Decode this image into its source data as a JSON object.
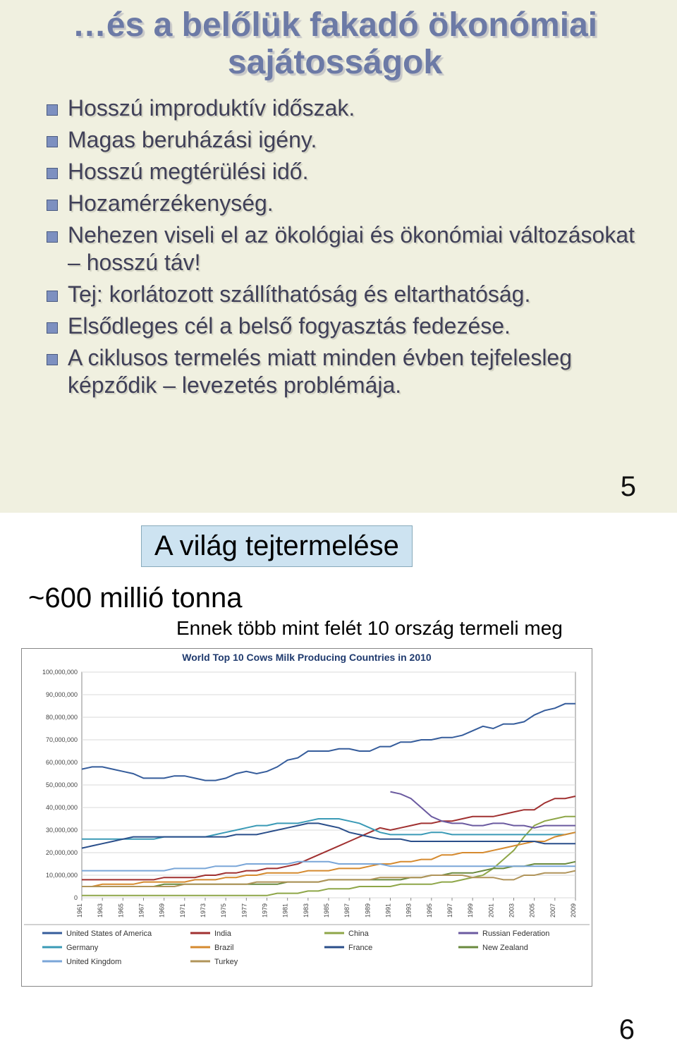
{
  "slide5": {
    "title_line1": "…és a belőlük fakadó ökonómiai",
    "title_line2": "sajátosságok",
    "bullets": [
      "Hosszú improduktív időszak.",
      "Magas beruházási igény.",
      "Hosszú megtérülési idő.",
      "Hozamérzékenység.",
      "Nehezen viseli el az ökológiai és ökonómiai változásokat – hosszú táv!",
      "Tej: korlátozott szállíthatóság és eltarthatóság.",
      "Elsődleges cél a belső fogyasztás fedezése.",
      "A ciklusos termelés miatt minden évben tejfelesleg képződik – levezetés problémája."
    ],
    "page": "5"
  },
  "slide6": {
    "titlebox": "A világ tejtermelése",
    "subline": "~600 millió tonna",
    "caption": "Ennek több mint felét 10 ország termeli meg",
    "page": "6",
    "chart": {
      "type": "line",
      "title": "World Top 10 Cows Milk Producing Countries in 2010",
      "title_fontsize": 14,
      "title_color": "#1f3a6e",
      "background_color": "#ffffff",
      "plot_bg": "#ffffff",
      "grid_color": "#d9d9d9",
      "border_color": "#888888",
      "axis_fontsize": 9,
      "axis_color": "#444444",
      "xlim": [
        1961,
        2009
      ],
      "xticks": [
        1961,
        1963,
        1965,
        1967,
        1969,
        1971,
        1973,
        1975,
        1977,
        1979,
        1981,
        1983,
        1985,
        1987,
        1989,
        1991,
        1993,
        1995,
        1997,
        1999,
        2001,
        2003,
        2005,
        2007,
        2009
      ],
      "ylim": [
        0,
        100000000
      ],
      "yticks": [
        0,
        10000000,
        20000000,
        30000000,
        40000000,
        50000000,
        60000000,
        70000000,
        80000000,
        90000000,
        100000000
      ],
      "ylabels": [
        "0",
        "10,000,000",
        "20,000,000",
        "30,000,000",
        "40,000,000",
        "50,000,000",
        "60,000,000",
        "70,000,000",
        "80,000,000",
        "90,000,000",
        "100,000,000"
      ],
      "line_width": 2,
      "legend_col1": [
        "United States of America",
        "Germany",
        "United Kingdom"
      ],
      "legend_col2": [
        "India",
        "Brazil",
        "Turkey"
      ],
      "legend_col3": [
        "China",
        "France"
      ],
      "legend_col4": [
        "Russian Federation",
        "New Zealand"
      ],
      "series": [
        {
          "name": "United States of America",
          "color": "#355c9b",
          "y": [
            57,
            58,
            58,
            57,
            56,
            55,
            53,
            53,
            53,
            54,
            54,
            53,
            52,
            52,
            53,
            55,
            56,
            55,
            56,
            58,
            61,
            62,
            65,
            65,
            65,
            66,
            66,
            65,
            65,
            67,
            67,
            69,
            69,
            70,
            70,
            71,
            71,
            72,
            74,
            76,
            75,
            77,
            77,
            78,
            81,
            83,
            84,
            86,
            86
          ]
        },
        {
          "name": "India",
          "color": "#a03030",
          "y": [
            8,
            8,
            8,
            8,
            8,
            8,
            8,
            8,
            9,
            9,
            9,
            9,
            10,
            10,
            11,
            11,
            12,
            12,
            13,
            13,
            14,
            15,
            17,
            19,
            21,
            23,
            25,
            27,
            29,
            31,
            30,
            31,
            32,
            33,
            33,
            34,
            34,
            35,
            36,
            36,
            36,
            37,
            38,
            39,
            39,
            42,
            44,
            44,
            45
          ]
        },
        {
          "name": "China",
          "color": "#8ea648",
          "y": [
            1,
            1,
            1,
            1,
            1,
            1,
            1,
            1,
            1,
            1,
            1,
            1,
            1,
            1,
            1,
            1,
            1,
            1,
            1,
            2,
            2,
            2,
            3,
            3,
            4,
            4,
            4,
            5,
            5,
            5,
            5,
            6,
            6,
            6,
            6,
            7,
            7,
            8,
            9,
            10,
            13,
            17,
            21,
            27,
            32,
            34,
            35,
            36,
            36
          ]
        },
        {
          "name": "Russian Federation",
          "color": "#6b5aa0",
          "y": [
            null,
            null,
            null,
            null,
            null,
            null,
            null,
            null,
            null,
            null,
            null,
            null,
            null,
            null,
            null,
            null,
            null,
            null,
            null,
            null,
            null,
            null,
            null,
            null,
            null,
            null,
            null,
            null,
            null,
            null,
            47,
            46,
            44,
            40,
            36,
            34,
            33,
            33,
            32,
            32,
            33,
            33,
            32,
            32,
            31,
            32,
            32,
            32,
            32
          ]
        },
        {
          "name": "Germany",
          "color": "#3a9ab6",
          "y": [
            26,
            26,
            26,
            26,
            26,
            26,
            26,
            26,
            27,
            27,
            27,
            27,
            27,
            28,
            29,
            30,
            31,
            32,
            32,
            33,
            33,
            33,
            34,
            35,
            35,
            35,
            34,
            33,
            31,
            29,
            28,
            28,
            28,
            28,
            29,
            29,
            28,
            28,
            28,
            28,
            28,
            28,
            28,
            28,
            28,
            28,
            28,
            28,
            29
          ]
        },
        {
          "name": "Brazil",
          "color": "#d58a2f",
          "y": [
            5,
            5,
            6,
            6,
            6,
            6,
            7,
            7,
            7,
            7,
            7,
            8,
            8,
            8,
            9,
            9,
            10,
            10,
            11,
            11,
            11,
            11,
            12,
            12,
            12,
            13,
            13,
            13,
            14,
            15,
            15,
            16,
            16,
            17,
            17,
            19,
            19,
            20,
            20,
            20,
            21,
            22,
            23,
            24,
            25,
            25,
            27,
            28,
            29
          ]
        },
        {
          "name": "France",
          "color": "#2a4e8a",
          "y": [
            22,
            23,
            24,
            25,
            26,
            27,
            27,
            27,
            27,
            27,
            27,
            27,
            27,
            27,
            27,
            28,
            28,
            28,
            29,
            30,
            31,
            32,
            33,
            33,
            32,
            31,
            29,
            28,
            27,
            26,
            26,
            26,
            25,
            25,
            25,
            25,
            25,
            25,
            25,
            25,
            25,
            25,
            25,
            25,
            25,
            24,
            24,
            24,
            24
          ]
        },
        {
          "name": "New Zealand",
          "color": "#6a8a3e",
          "y": [
            5,
            5,
            5,
            5,
            5,
            5,
            5,
            5,
            6,
            6,
            6,
            6,
            6,
            6,
            6,
            6,
            6,
            6,
            6,
            6,
            7,
            7,
            7,
            7,
            8,
            8,
            8,
            8,
            8,
            8,
            8,
            8,
            9,
            9,
            10,
            10,
            11,
            11,
            11,
            12,
            13,
            13,
            14,
            14,
            15,
            15,
            15,
            15,
            16
          ]
        },
        {
          "name": "United Kingdom",
          "color": "#7aa6d8",
          "y": [
            12,
            12,
            12,
            12,
            12,
            12,
            12,
            12,
            12,
            13,
            13,
            13,
            13,
            14,
            14,
            14,
            15,
            15,
            15,
            15,
            15,
            16,
            16,
            16,
            16,
            15,
            15,
            15,
            15,
            15,
            14,
            14,
            14,
            14,
            14,
            14,
            14,
            14,
            14,
            14,
            14,
            14,
            14,
            14,
            14,
            14,
            14,
            14,
            14
          ]
        },
        {
          "name": "Turkey",
          "color": "#b0945a",
          "y": [
            5,
            5,
            5,
            5,
            5,
            5,
            5,
            5,
            5,
            5,
            6,
            6,
            6,
            6,
            6,
            6,
            6,
            7,
            7,
            7,
            7,
            7,
            7,
            7,
            8,
            8,
            8,
            8,
            8,
            9,
            9,
            9,
            9,
            9,
            10,
            10,
            10,
            10,
            9,
            9,
            9,
            8,
            8,
            10,
            10,
            11,
            11,
            11,
            12
          ]
        }
      ],
      "legend_colors": {
        "United States of America": "#355c9b",
        "India": "#a03030",
        "China": "#8ea648",
        "Russian Federation": "#6b5aa0",
        "Germany": "#3a9ab6",
        "Brazil": "#d58a2f",
        "France": "#2a4e8a",
        "New Zealand": "#6a8a3e",
        "United Kingdom": "#7aa6d8",
        "Turkey": "#b0945a"
      }
    }
  }
}
